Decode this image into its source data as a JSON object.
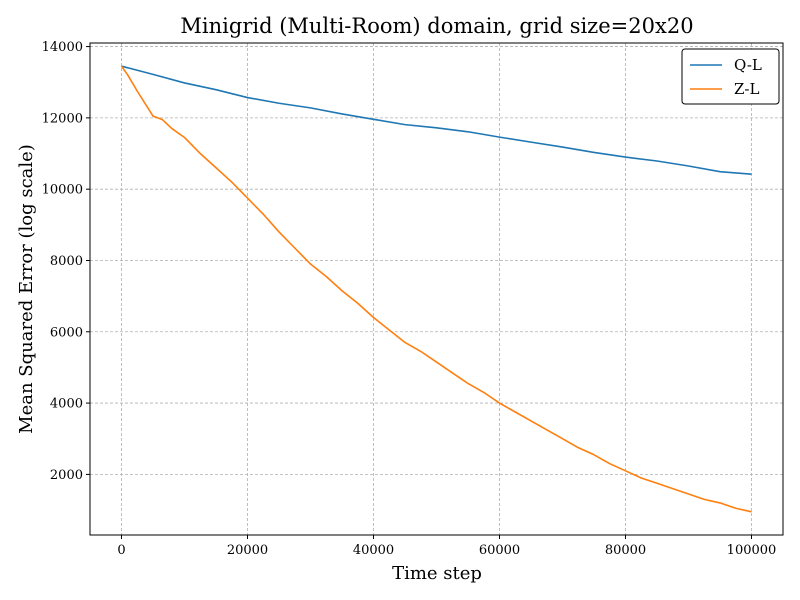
{
  "chart_data": {
    "type": "line",
    "title": "Minigrid (Multi-Room) domain, grid size=20x20",
    "xlabel": "Time step",
    "ylabel": "Mean Squared Error (log scale)",
    "xlim": [
      -5000,
      105000
    ],
    "ylim": [
      300,
      14100
    ],
    "xticks": [
      0,
      20000,
      40000,
      60000,
      80000,
      100000
    ],
    "yticks": [
      2000,
      4000,
      6000,
      8000,
      10000,
      12000,
      14000
    ],
    "grid": true,
    "legend_position": "top-right",
    "series": [
      {
        "name": "Q-L",
        "color": "#1f77b4",
        "x": [
          0,
          5000,
          10000,
          15000,
          20000,
          25000,
          30000,
          35000,
          40000,
          45000,
          50000,
          55000,
          60000,
          65000,
          70000,
          75000,
          80000,
          85000,
          90000,
          95000,
          100000
        ],
        "y": [
          13450,
          13220,
          12980,
          12790,
          12570,
          12410,
          12280,
          12110,
          11960,
          11810,
          11720,
          11610,
          11460,
          11320,
          11180,
          11030,
          10900,
          10790,
          10650,
          10490,
          10420
        ]
      },
      {
        "name": "Z-L",
        "color": "#ff7f0e",
        "x": [
          0,
          1000,
          2500,
          5000,
          6500,
          8000,
          10000,
          12500,
          15000,
          17500,
          20000,
          22500,
          25000,
          27500,
          30000,
          32500,
          35000,
          37500,
          40000,
          42500,
          45000,
          47500,
          50000,
          52500,
          55000,
          57500,
          60000,
          62500,
          65000,
          67500,
          70000,
          72500,
          75000,
          77500,
          80000,
          82500,
          85000,
          87500,
          90000,
          92500,
          95000,
          97500,
          100000
        ],
        "y": [
          13450,
          13200,
          12750,
          12050,
          11950,
          11700,
          11450,
          11000,
          10600,
          10200,
          9750,
          9300,
          8800,
          8350,
          7900,
          7550,
          7150,
          6800,
          6400,
          6050,
          5700,
          5450,
          5150,
          4850,
          4550,
          4300,
          4000,
          3750,
          3500,
          3250,
          3000,
          2750,
          2550,
          2300,
          2100,
          1900,
          1750,
          1600,
          1450,
          1300,
          1200,
          1050,
          950
        ]
      }
    ]
  }
}
